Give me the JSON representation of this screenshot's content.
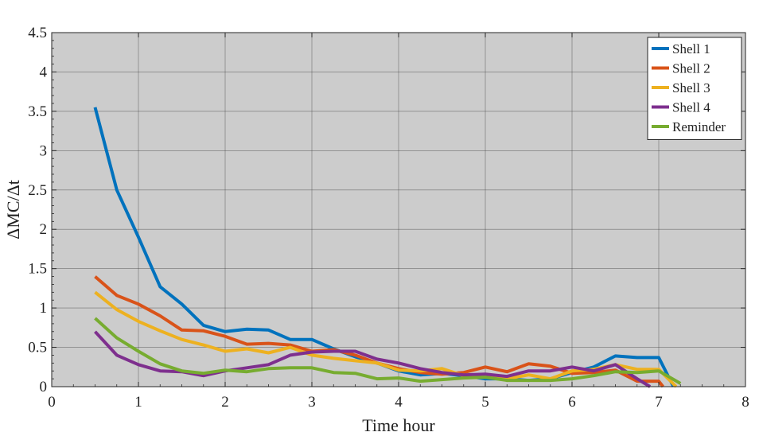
{
  "chart_data": {
    "type": "line",
    "xlabel": "Time hour",
    "ylabel": "ΔMC/Δt",
    "xlim": [
      0,
      8
    ],
    "ylim": [
      0,
      4.5
    ],
    "x_ticks": [
      "0",
      "1",
      "2",
      "3",
      "4",
      "5",
      "6",
      "7",
      "8"
    ],
    "y_ticks": [
      "0",
      "0.5",
      "1",
      "1.5",
      "2",
      "2.5",
      "3",
      "3.5",
      "4",
      "4.5"
    ],
    "grid": true,
    "background_color": "#cccccc",
    "legend_position": "top-right",
    "series": [
      {
        "name": "Shell 1",
        "color": "#0072BD",
        "x": [
          0.5,
          0.75,
          1.0,
          1.25,
          1.5,
          1.75,
          2.0,
          2.25,
          2.5,
          2.75,
          3.0,
          3.25,
          3.5,
          3.75,
          4.0,
          4.25,
          4.5,
          4.75,
          5.0,
          5.25,
          5.5,
          5.75,
          6.0,
          6.25,
          6.5,
          6.75,
          7.0,
          7.17
        ],
        "y": [
          3.55,
          2.5,
          1.9,
          1.27,
          1.05,
          0.78,
          0.7,
          0.73,
          0.72,
          0.6,
          0.6,
          0.48,
          0.38,
          0.3,
          0.2,
          0.15,
          0.17,
          0.14,
          0.1,
          0.1,
          0.08,
          0.1,
          0.18,
          0.25,
          0.39,
          0.37,
          0.37,
          0.0
        ]
      },
      {
        "name": "Shell 2",
        "color": "#D95319",
        "x": [
          0.5,
          0.75,
          1.0,
          1.25,
          1.5,
          1.75,
          2.0,
          2.25,
          2.5,
          2.75,
          3.0,
          3.25,
          3.5,
          3.75,
          4.0,
          4.25,
          4.5,
          4.75,
          5.0,
          5.25,
          5.5,
          5.75,
          6.0,
          6.25,
          6.5,
          6.75,
          7.0,
          7.05
        ],
        "y": [
          1.4,
          1.16,
          1.05,
          0.9,
          0.72,
          0.71,
          0.64,
          0.54,
          0.55,
          0.53,
          0.45,
          0.47,
          0.4,
          0.3,
          0.23,
          0.18,
          0.16,
          0.18,
          0.25,
          0.19,
          0.29,
          0.26,
          0.17,
          0.18,
          0.21,
          0.07,
          0.07,
          0.0
        ]
      },
      {
        "name": "Shell 3",
        "color": "#EDB120",
        "x": [
          0.5,
          0.75,
          1.0,
          1.25,
          1.5,
          1.75,
          2.0,
          2.25,
          2.5,
          2.75,
          3.0,
          3.25,
          3.5,
          3.75,
          4.0,
          4.25,
          4.5,
          4.75,
          5.0,
          5.25,
          5.5,
          5.75,
          6.0,
          6.25,
          6.5,
          6.75,
          7.0,
          7.2
        ],
        "y": [
          1.2,
          0.98,
          0.83,
          0.71,
          0.6,
          0.53,
          0.45,
          0.48,
          0.43,
          0.5,
          0.4,
          0.36,
          0.33,
          0.3,
          0.21,
          0.2,
          0.23,
          0.14,
          0.15,
          0.1,
          0.15,
          0.1,
          0.2,
          0.22,
          0.28,
          0.22,
          0.22,
          0.0
        ]
      },
      {
        "name": "Shell 4",
        "color": "#7E2F8E",
        "x": [
          0.5,
          0.75,
          1.0,
          1.25,
          1.5,
          1.75,
          2.0,
          2.25,
          2.5,
          2.75,
          3.0,
          3.25,
          3.5,
          3.75,
          4.0,
          4.25,
          4.5,
          4.75,
          5.0,
          5.25,
          5.5,
          5.75,
          6.0,
          6.25,
          6.5,
          6.75,
          6.9
        ],
        "y": [
          0.7,
          0.4,
          0.28,
          0.2,
          0.19,
          0.14,
          0.2,
          0.24,
          0.28,
          0.4,
          0.44,
          0.45,
          0.45,
          0.35,
          0.3,
          0.23,
          0.18,
          0.15,
          0.16,
          0.13,
          0.2,
          0.2,
          0.25,
          0.2,
          0.28,
          0.1,
          0.0
        ]
      },
      {
        "name": "Reminder",
        "color": "#77AC30",
        "x": [
          0.5,
          0.75,
          1.0,
          1.25,
          1.5,
          1.75,
          2.0,
          2.25,
          2.5,
          2.75,
          3.0,
          3.25,
          3.5,
          3.75,
          4.0,
          4.25,
          4.5,
          4.75,
          5.0,
          5.25,
          5.5,
          5.75,
          6.0,
          6.25,
          6.5,
          6.75,
          7.0,
          7.25
        ],
        "y": [
          0.87,
          0.62,
          0.45,
          0.29,
          0.2,
          0.17,
          0.21,
          0.19,
          0.23,
          0.24,
          0.24,
          0.18,
          0.17,
          0.1,
          0.11,
          0.07,
          0.09,
          0.11,
          0.12,
          0.08,
          0.08,
          0.08,
          0.1,
          0.14,
          0.19,
          0.18,
          0.2,
          0.04
        ]
      }
    ]
  }
}
